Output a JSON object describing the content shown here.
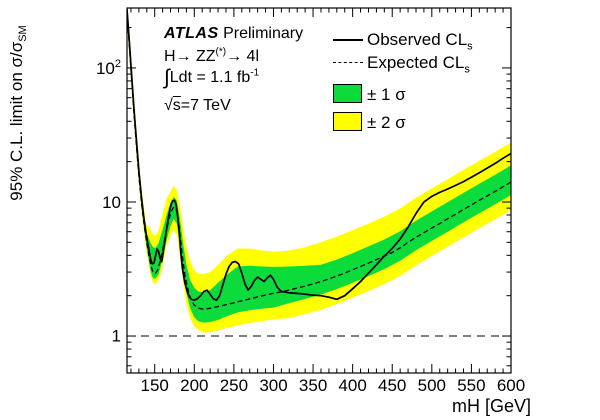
{
  "figure": {
    "info": {
      "line1": {
        "brand": "ATLAS",
        "rest": " Preliminary"
      },
      "line2": {
        "pre": "H→ ZZ",
        "sup": "(*)",
        "post": "→ 4l"
      },
      "line3": {
        "integral": "∫",
        "pre": "Ldt = 1.1 fb",
        "sup": "-1"
      },
      "line4": {
        "sqrt": "√",
        "overline": "s",
        "post": "=7 TeV"
      }
    },
    "legend": {
      "observed": {
        "label": "Observed CL",
        "sub": "s"
      },
      "expected": {
        "label": "Expected CL",
        "sub": "s"
      },
      "one_sigma": {
        "label": "± 1 σ"
      },
      "two_sigma": {
        "label": "± 2 σ"
      }
    }
  },
  "chart_data": {
    "type": "line",
    "title": "",
    "xlabel": "mH [GeV]",
    "ylabel": {
      "main": "95% C.L. limit on σ/σ",
      "sub": "SM"
    },
    "x_domain": [
      115,
      600
    ],
    "y_domain": [
      0.53,
      280
    ],
    "y_scale": "log",
    "grid": false,
    "x_ticks_major": [
      150,
      200,
      250,
      300,
      350,
      400,
      450,
      500,
      550,
      600
    ],
    "x_tick_minor_step": 10,
    "y_ticks": [
      {
        "value": 1,
        "label": "1"
      },
      {
        "value": 10,
        "label": "10"
      },
      {
        "value": 100,
        "label": "10",
        "sup": "2"
      }
    ],
    "reference_line": 1,
    "colors": {
      "one_sigma": "#0bdc3c",
      "two_sigma": "#ffff00",
      "observed": "#000000",
      "expected": "#000000"
    },
    "series": {
      "mH": [
        115,
        118,
        121,
        124,
        127,
        130,
        133,
        136,
        139,
        142,
        145,
        147,
        149,
        151,
        153,
        155,
        157,
        159,
        161,
        163,
        165,
        167,
        169,
        171,
        173,
        175,
        177,
        179,
        181,
        183,
        185,
        188,
        191,
        194,
        197,
        200,
        204,
        208,
        212,
        216,
        220,
        224,
        228,
        232,
        236,
        240,
        244,
        248,
        252,
        256,
        260,
        264,
        268,
        272,
        276,
        280,
        284,
        288,
        292,
        296,
        300,
        305,
        310,
        320,
        330,
        340,
        350,
        360,
        370,
        380,
        390,
        400,
        410,
        420,
        430,
        440,
        450,
        460,
        470,
        480,
        490,
        500,
        510,
        520,
        530,
        540,
        550,
        560,
        570,
        580,
        590,
        600
      ],
      "expected": [
        260,
        145,
        78,
        44,
        26,
        15.5,
        10.2,
        7.2,
        5.4,
        4.2,
        3.4,
        3.1,
        2.97,
        2.95,
        3.05,
        3.3,
        3.62,
        4.1,
        4.7,
        5.4,
        6.2,
        7.0,
        7.8,
        8.5,
        9.0,
        9.2,
        8.9,
        7.9,
        6.4,
        5.0,
        3.9,
        2.9,
        2.35,
        2.02,
        1.82,
        1.7,
        1.63,
        1.6,
        1.59,
        1.6,
        1.61,
        1.63,
        1.65,
        1.67,
        1.69,
        1.71,
        1.73,
        1.76,
        1.78,
        1.81,
        1.83,
        1.86,
        1.88,
        1.91,
        1.93,
        1.96,
        1.98,
        2.01,
        2.03,
        2.06,
        2.08,
        2.11,
        2.14,
        2.2,
        2.28,
        2.36,
        2.45,
        2.55,
        2.67,
        2.8,
        2.95,
        3.12,
        3.3,
        3.5,
        3.72,
        3.95,
        4.2,
        4.55,
        5.0,
        5.45,
        5.9,
        6.4,
        6.9,
        7.5,
        8.1,
        8.8,
        9.5,
        10.3,
        11.1,
        12.0,
        13.0,
        14.1
      ],
      "observed": [
        275,
        155,
        85,
        48,
        28.5,
        17,
        11.2,
        7.9,
        5.9,
        4.6,
        3.7,
        3.45,
        3.5,
        3.95,
        4.45,
        4.25,
        3.75,
        3.6,
        4.3,
        5.2,
        6.3,
        7.5,
        8.7,
        9.7,
        10.2,
        10.3,
        9.6,
        7.8,
        5.8,
        4.2,
        3.2,
        2.5,
        2.15,
        1.95,
        1.87,
        1.85,
        1.9,
        2.0,
        2.15,
        2.2,
        2.05,
        1.9,
        1.85,
        2.0,
        2.4,
        2.9,
        3.3,
        3.55,
        3.6,
        3.45,
        2.95,
        2.45,
        2.2,
        2.35,
        2.6,
        2.75,
        2.65,
        2.55,
        2.7,
        2.85,
        2.65,
        2.3,
        2.15,
        2.1,
        2.08,
        2.05,
        2.02,
        2.0,
        1.95,
        1.88,
        2.0,
        2.25,
        2.55,
        2.95,
        3.4,
        3.95,
        4.5,
        5.3,
        6.5,
        8.2,
        10.0,
        11.0,
        11.8,
        12.5,
        13.3,
        14.2,
        15.3,
        16.5,
        17.9,
        19.4,
        21.2,
        23.0
      ]
    },
    "bands": {
      "mH": [
        115,
        121,
        127,
        133,
        139,
        145,
        148,
        151,
        155,
        160,
        165,
        170,
        174,
        178,
        182,
        186,
        190,
        195,
        200,
        205,
        212,
        220,
        230,
        242,
        255,
        270,
        285,
        300,
        320,
        340,
        360,
        380,
        400,
        420,
        440,
        460,
        480,
        500,
        520,
        540,
        560,
        580,
        600
      ],
      "one_sigma_hi": [
        291,
        87,
        29,
        11.4,
        6.05,
        4.9,
        4.6,
        4.55,
        4.95,
        6.2,
        8.0,
        9.9,
        10.9,
        10.2,
        7.4,
        4.9,
        3.4,
        2.6,
        2.3,
        2.15,
        2.12,
        2.2,
        2.5,
        2.9,
        3.3,
        3.35,
        3.3,
        3.28,
        3.3,
        3.35,
        3.4,
        3.72,
        4.15,
        4.66,
        5.25,
        6.05,
        7.25,
        8.51,
        9.98,
        11.7,
        13.7,
        15.96,
        18.75
      ],
      "one_sigma_lo": [
        236,
        71,
        23.6,
        9.3,
        4.9,
        3.0,
        2.7,
        2.68,
        2.9,
        3.75,
        5.2,
        6.6,
        7.5,
        6.9,
        4.8,
        3.0,
        2.1,
        1.6,
        1.38,
        1.29,
        1.26,
        1.27,
        1.32,
        1.41,
        1.5,
        1.56,
        1.6,
        1.63,
        1.76,
        1.89,
        2.04,
        2.24,
        2.5,
        2.8,
        3.16,
        3.64,
        4.36,
        5.12,
        6.0,
        7.04,
        8.24,
        9.6,
        11.28
      ],
      "two_sigma_hi": [
        333,
        100,
        33,
        13,
        6.9,
        6.2,
        5.7,
        5.6,
        6.2,
        8.2,
        10.6,
        11.9,
        13.2,
        12.3,
        9.3,
        6.4,
        4.6,
        3.6,
        3.1,
        2.92,
        2.9,
        3.0,
        3.4,
        4.0,
        4.5,
        4.5,
        4.35,
        4.25,
        4.35,
        4.6,
        5.0,
        5.52,
        6.15,
        6.9,
        7.78,
        8.96,
        10.74,
        12.61,
        14.78,
        17.34,
        20.29,
        23.64,
        27.78
      ],
      "two_sigma_lo": [
        217,
        65,
        21.7,
        8.5,
        4.5,
        2.8,
        2.5,
        2.45,
        2.62,
        3.3,
        4.7,
        5.6,
        6.2,
        5.7,
        3.9,
        2.5,
        1.75,
        1.35,
        1.18,
        1.11,
        1.06,
        1.07,
        1.1,
        1.15,
        1.2,
        1.25,
        1.29,
        1.33,
        1.36,
        1.46,
        1.57,
        1.73,
        1.93,
        2.16,
        2.44,
        2.81,
        3.36,
        3.95,
        4.63,
        5.43,
        6.36,
        7.41,
        8.7
      ]
    }
  }
}
